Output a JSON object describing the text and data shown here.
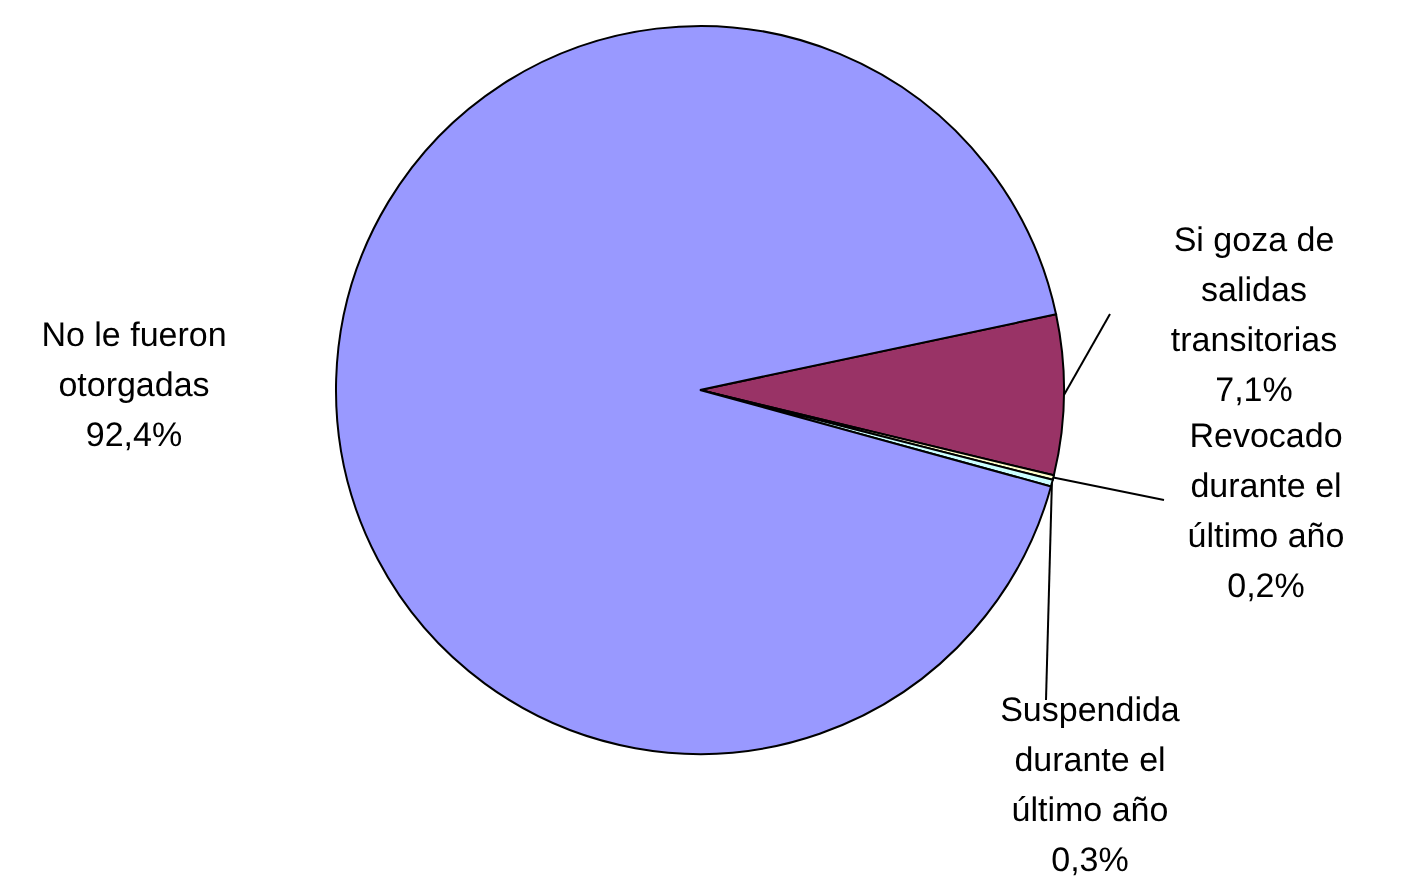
{
  "chart_data": {
    "type": "pie",
    "categories": [
      "Si goza de salidas transitorias",
      "Revocado durante el último año",
      "Suspendida durante el último año",
      "No le fueron otorgadas"
    ],
    "values": [
      7.1,
      0.2,
      0.3,
      92.4
    ],
    "value_labels": [
      "7,1%",
      "0,2%",
      "0,3%",
      "92,4%"
    ],
    "colors": [
      "#993366",
      "#ffffcc",
      "#ccffff",
      "#9999ff"
    ],
    "legend": false
  }
}
